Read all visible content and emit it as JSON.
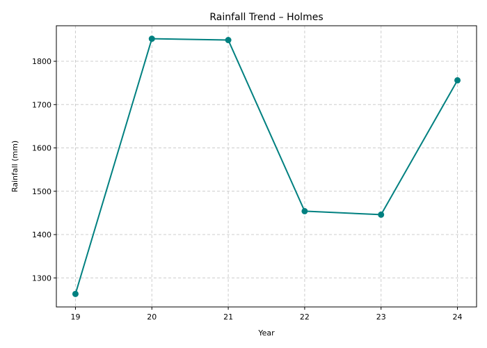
{
  "chart_data": {
    "type": "line",
    "title": "Rainfall Trend – Holmes",
    "xlabel": "Year",
    "ylabel": "Rainfall (mm)",
    "x": [
      19,
      20,
      21,
      22,
      23,
      24
    ],
    "x_tick_labels": [
      "19",
      "20",
      "21",
      "22",
      "23",
      "24"
    ],
    "y_ticks": [
      1300,
      1400,
      1500,
      1600,
      1700,
      1800
    ],
    "y_tick_labels": [
      "1300",
      "1400",
      "1500",
      "1600",
      "1700",
      "1800"
    ],
    "series": [
      {
        "values": [
          1263,
          1852,
          1849,
          1454,
          1446,
          1756
        ]
      }
    ],
    "xlim": [
      18.75,
      24.25
    ],
    "ylim": [
      1233,
      1882
    ],
    "grid": true,
    "line_color": "#008080"
  }
}
